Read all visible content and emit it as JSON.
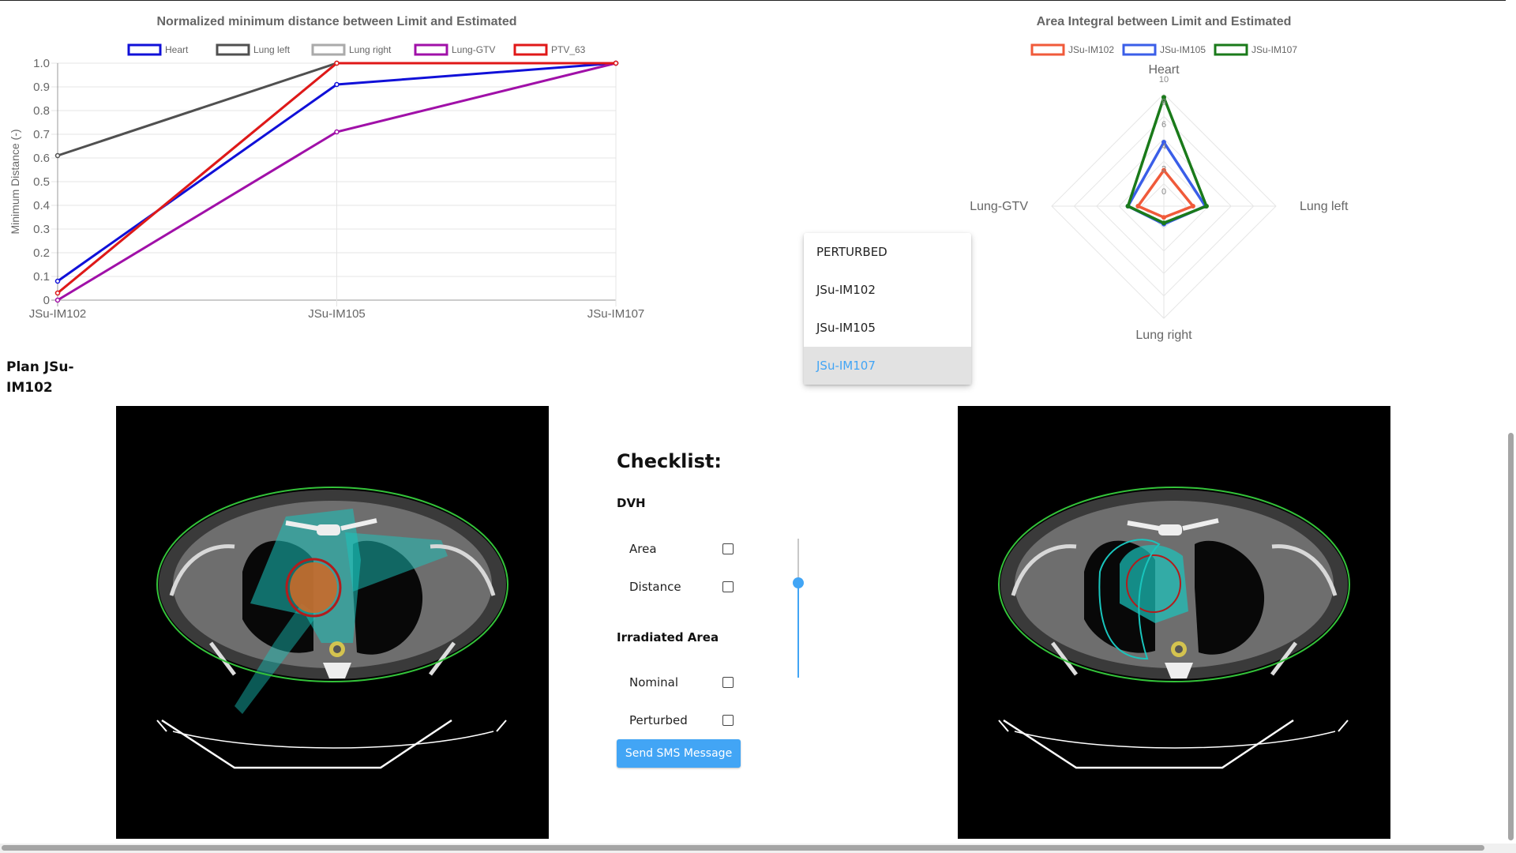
{
  "line_chart_legend": [
    "Heart",
    "Lung left",
    "Lung right",
    "Lung-GTV",
    "PTV_63"
  ],
  "radar_chart_legend": [
    "JSu-IM102",
    "JSu-IM105",
    "JSu-IM107"
  ],
  "chart_data": [
    {
      "type": "line",
      "title": "Normalized minimum distance between Limit and Estimated",
      "xlabel": "",
      "ylabel": "Minimum Distance (-)",
      "categories": [
        "JSu-IM102",
        "JSu-IM105",
        "JSu-IM107"
      ],
      "ylim": [
        0,
        1
      ],
      "yticks": [
        "0",
        "0.1",
        "0.2",
        "0.3",
        "0.4",
        "0.5",
        "0.6",
        "0.7",
        "0.8",
        "0.9",
        "1.0"
      ],
      "grid": true,
      "legend": "top",
      "series": [
        {
          "name": "Heart",
          "color": "#1010d8",
          "values": [
            0.08,
            0.91,
            1.0
          ]
        },
        {
          "name": "Lung left",
          "color": "#505050",
          "values": [
            0.61,
            1.0,
            1.0
          ]
        },
        {
          "name": "Lung right",
          "color": "#aaaaaa",
          "values": [
            0.03,
            1.0,
            1.0
          ]
        },
        {
          "name": "Lung-GTV",
          "color": "#a010a8",
          "values": [
            0.0,
            0.71,
            1.0
          ]
        },
        {
          "name": "PTV_63",
          "color": "#e01818",
          "values": [
            0.03,
            1.0,
            1.0
          ]
        }
      ]
    },
    {
      "type": "radar",
      "title": "Area Integral between Limit and Estimated",
      "axes": [
        "Heart",
        "Lung left",
        "Lung right",
        "Lung-GTV"
      ],
      "rlim": [
        0,
        10
      ],
      "rticks": [
        "0",
        "2",
        "4",
        "6",
        "8",
        "10"
      ],
      "legend": "top",
      "series": [
        {
          "name": "JSu-IM102",
          "color": "#f05a3a",
          "values": [
            3.2,
            2.6,
            1.0,
            2.3
          ]
        },
        {
          "name": "JSu-IM105",
          "color": "#3a5ee8",
          "values": [
            5.7,
            3.7,
            1.6,
            3.2
          ]
        },
        {
          "name": "JSu-IM107",
          "color": "#1a7a1a",
          "values": [
            9.7,
            3.8,
            1.5,
            3.2
          ]
        }
      ]
    }
  ],
  "plan": {
    "title": "Plan JSu-IM102"
  },
  "checklist": {
    "title": "Checklist:",
    "dvh_heading": "DVH",
    "area_label": "Area",
    "distance_label": "Distance",
    "irradiated_heading": "Irradiated Area",
    "nominal_label": "Nominal",
    "perturbed_label": "Perturbed",
    "send_button": "Send SMS Message"
  },
  "dropdown": {
    "items": [
      "PERTURBED",
      "JSu-IM102",
      "JSu-IM105",
      "JSu-IM107"
    ],
    "selected": "JSu-IM107"
  },
  "slider": {
    "value": 0.68
  },
  "colors": {
    "accent": "#42a5f5",
    "structure_cyan": "#19c5bd",
    "tumor_orange": "#c96a2a",
    "body_contour_green": "#34c23a"
  }
}
